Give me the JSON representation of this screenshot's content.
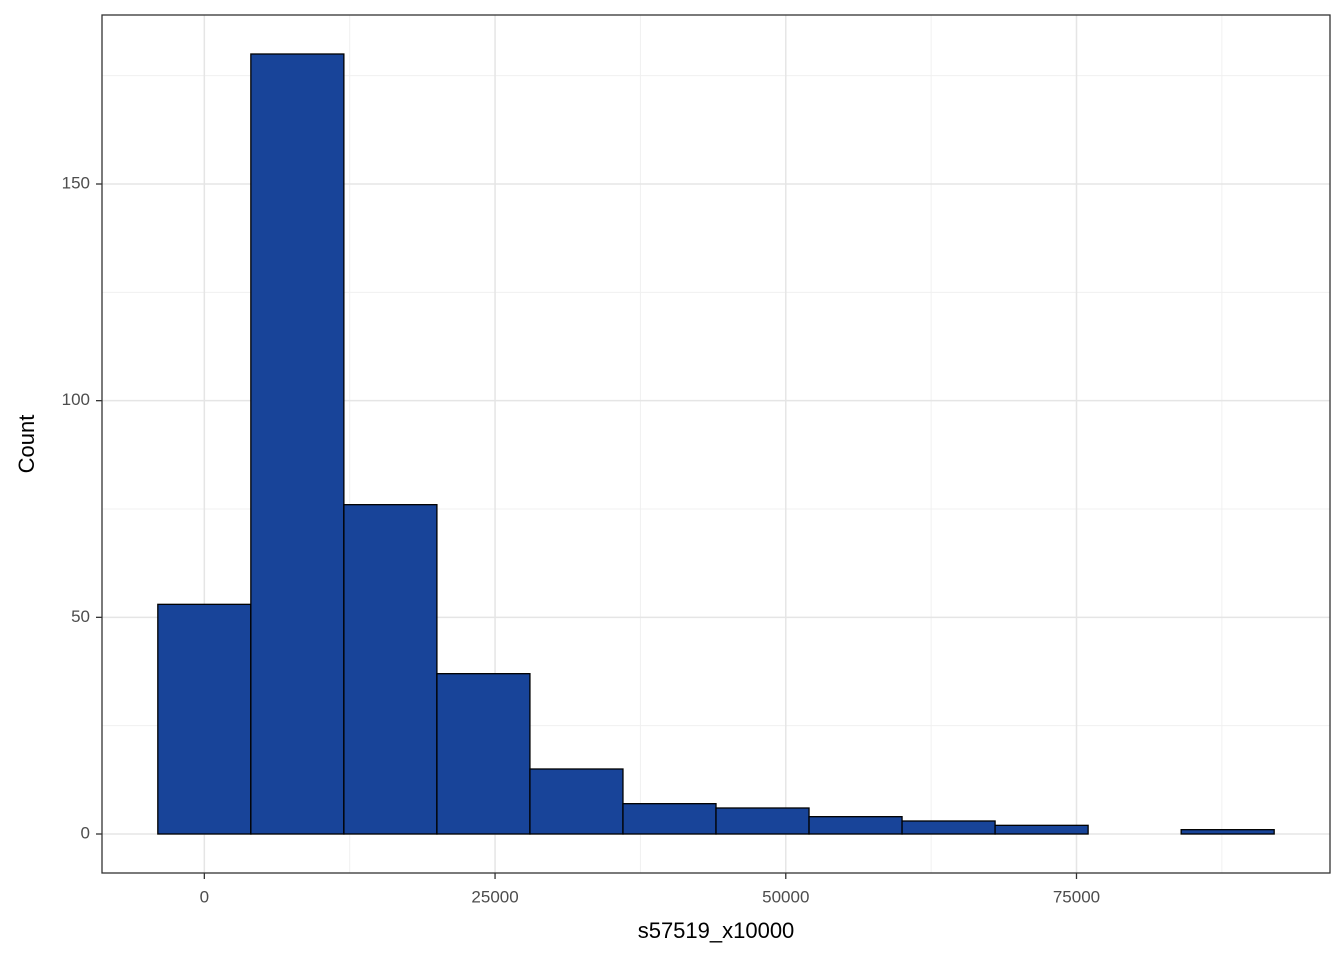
{
  "chart_data": {
    "type": "histogram",
    "x_label": "s57519_x10000",
    "y_label": "Count",
    "bins": [
      -4000,
      4000,
      12000,
      20000,
      28000,
      36000,
      44000,
      52000,
      60000,
      68000,
      76000,
      84000,
      92000
    ],
    "counts": [
      53,
      180,
      76,
      37,
      15,
      7,
      6,
      4,
      3,
      2,
      0,
      1
    ],
    "color": "#184499",
    "edge_color": "#000000",
    "xlim": [
      -8800,
      96800
    ],
    "xticks": [
      0,
      25000,
      50000,
      75000
    ],
    "minor_xticks": [
      12500,
      37500,
      62500,
      87500
    ],
    "ylim": [
      -9,
      189
    ],
    "yticks": [
      0,
      50,
      100,
      150
    ],
    "minor_yticks": [
      25,
      75,
      125,
      175
    ],
    "grid": true
  }
}
